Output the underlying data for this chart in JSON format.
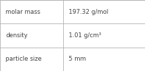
{
  "rows": [
    {
      "label": "molar mass",
      "value": "197.32 g/mol"
    },
    {
      "label": "density",
      "value": "1.01 g/cm³"
    },
    {
      "label": "particle size",
      "value": "5 mm"
    }
  ],
  "background_color": "#ffffff",
  "border_color": "#b0b0b0",
  "text_color": "#404040",
  "label_font_size": 6.2,
  "value_font_size": 6.2,
  "col_split": 0.435,
  "figsize": [
    2.09,
    1.03
  ],
  "dpi": 100
}
